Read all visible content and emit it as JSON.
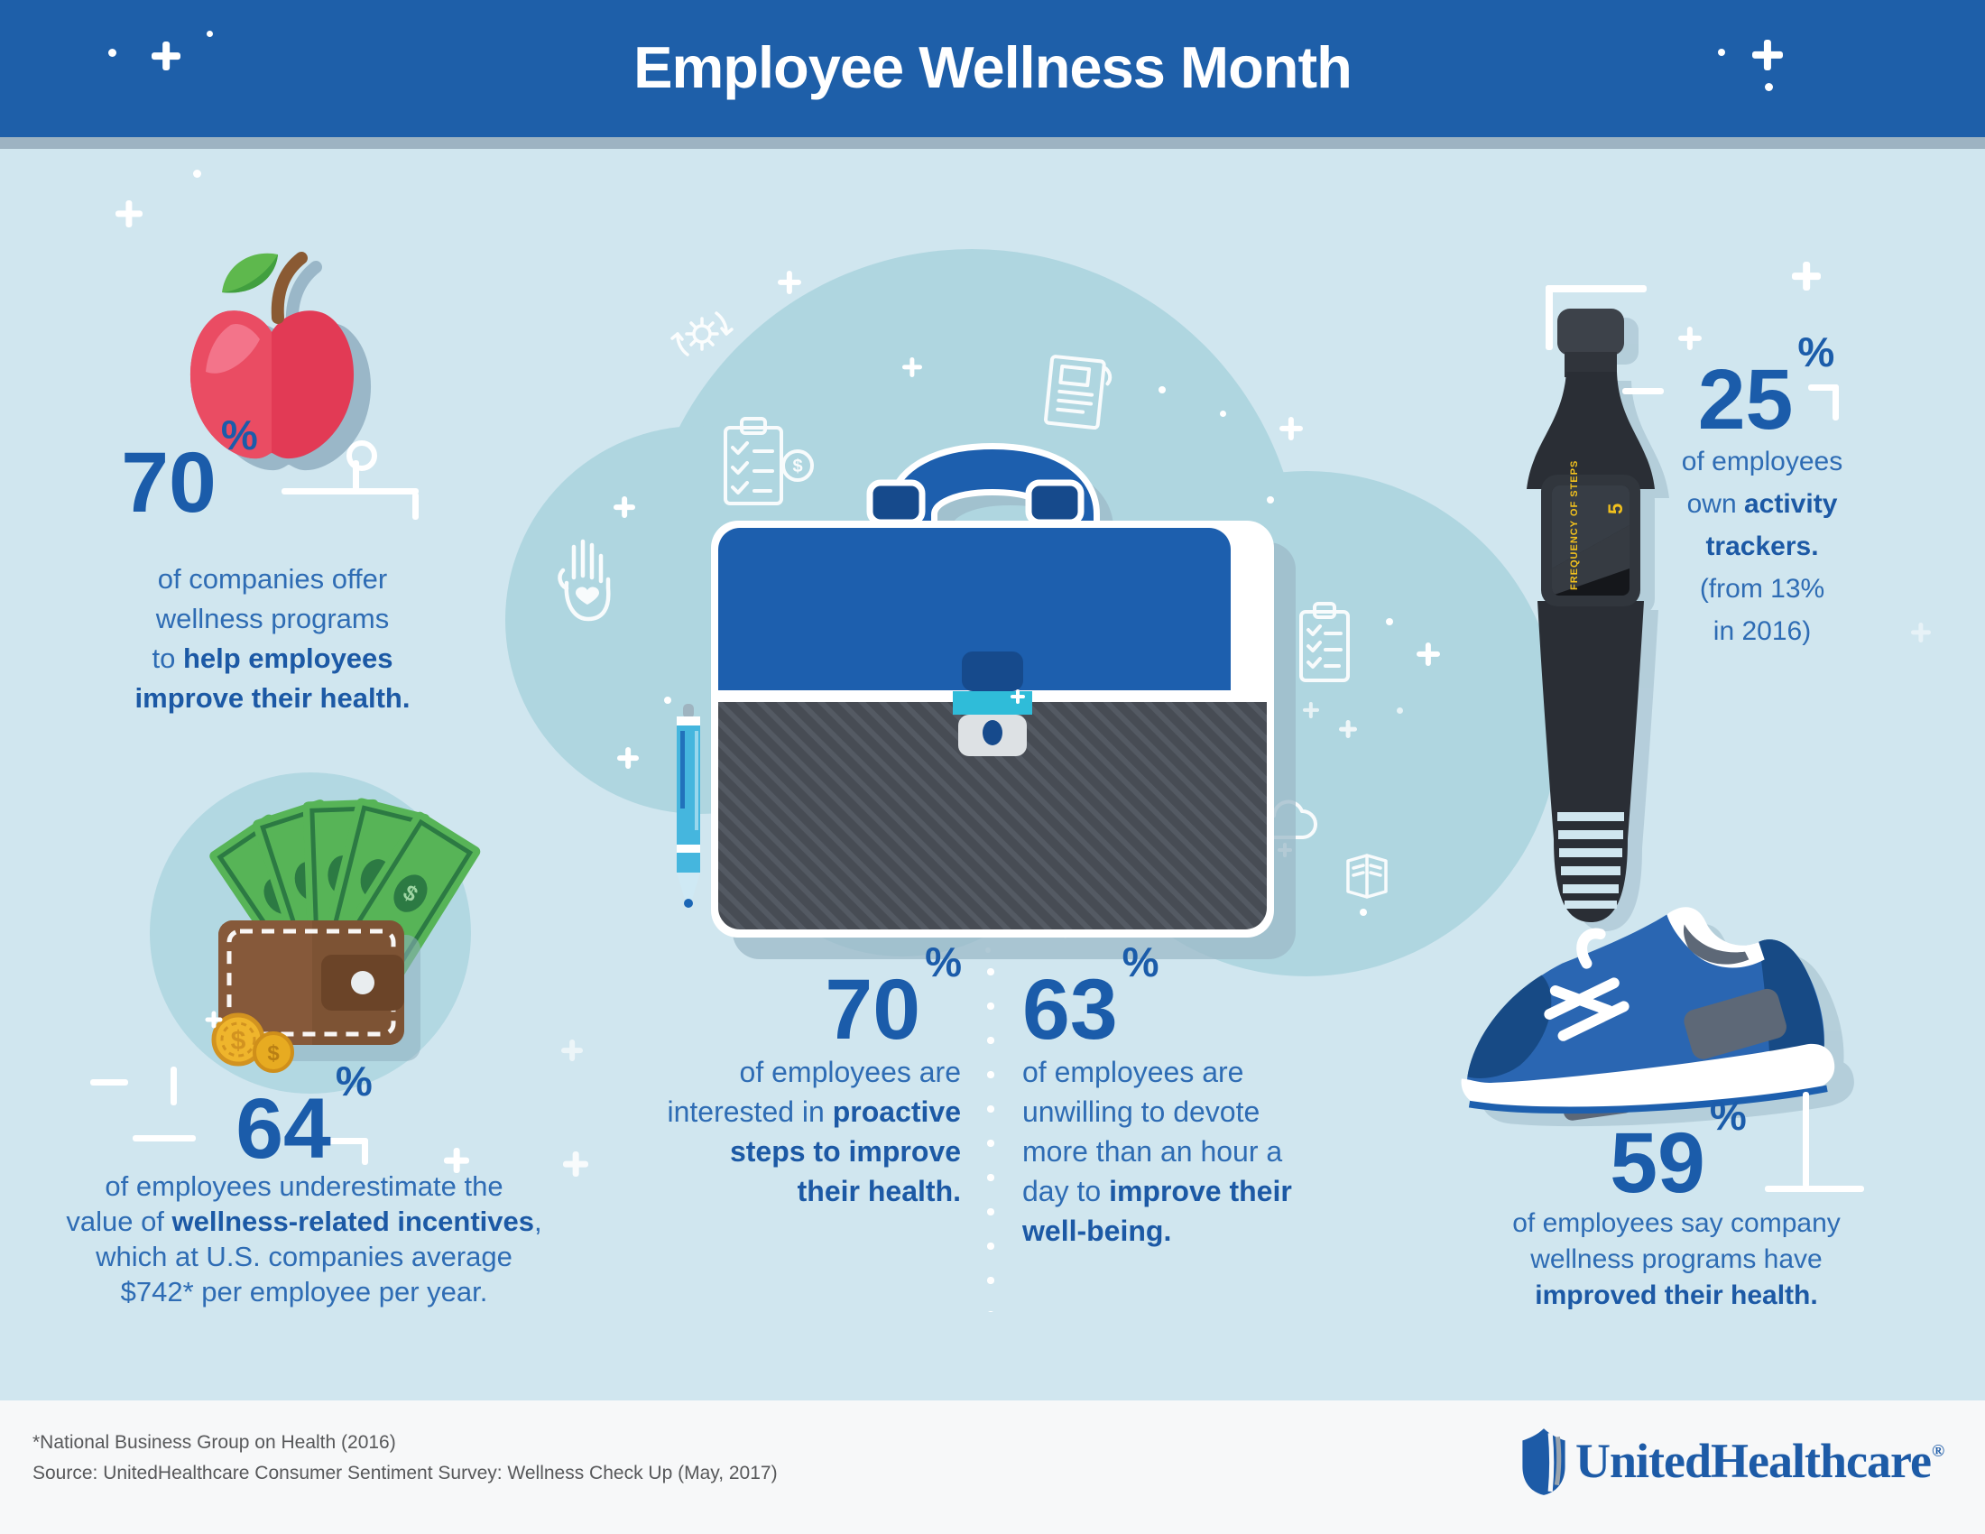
{
  "header": {
    "title": "Employee Wellness Month"
  },
  "stats": {
    "companies": {
      "value": "70",
      "unit": "%",
      "lines": [
        [
          {
            "t": "of companies offer"
          }
        ],
        [
          {
            "t": "wellness programs"
          }
        ],
        [
          {
            "t": "to "
          },
          {
            "t": "help employees",
            "b": true
          }
        ],
        [
          {
            "t": "improve their health.",
            "b": true
          }
        ]
      ]
    },
    "incentives": {
      "value": "64",
      "unit": "%",
      "lines": [
        [
          {
            "t": "of employees underestimate the"
          }
        ],
        [
          {
            "t": "value of "
          },
          {
            "t": "wellness-related incentives",
            "b": true
          },
          {
            "t": ","
          }
        ],
        [
          {
            "t": "which at U.S. companies average"
          }
        ],
        [
          {
            "t": "$742* per employee per year."
          }
        ]
      ]
    },
    "proactive": {
      "value": "70",
      "unit": "%",
      "lines": [
        [
          {
            "t": "of employees are"
          }
        ],
        [
          {
            "t": "interested in "
          },
          {
            "t": "proactive",
            "b": true
          }
        ],
        [
          {
            "t": "steps to improve",
            "b": true
          }
        ],
        [
          {
            "t": "their health.",
            "b": true
          }
        ]
      ]
    },
    "unwilling": {
      "value": "63",
      "unit": "%",
      "lines": [
        [
          {
            "t": "of employees are"
          }
        ],
        [
          {
            "t": "unwilling to devote"
          }
        ],
        [
          {
            "t": "more than an hour a"
          }
        ],
        [
          {
            "t": "day to "
          },
          {
            "t": "improve their",
            "b": true
          }
        ],
        [
          {
            "t": "well-being.",
            "b": true
          }
        ]
      ]
    },
    "trackers": {
      "value": "25",
      "unit": "%",
      "lines": [
        [
          {
            "t": "of employees"
          }
        ],
        [
          {
            "t": "own "
          },
          {
            "t": "activity",
            "b": true
          }
        ],
        [
          {
            "t": "trackers.",
            "b": true
          }
        ],
        [
          {
            "t": "(from 13%"
          }
        ],
        [
          {
            "t": "in 2016)"
          }
        ]
      ]
    },
    "improved": {
      "value": "59",
      "unit": "%",
      "lines": [
        [
          {
            "t": "of employees say company"
          }
        ],
        [
          {
            "t": "wellness programs have"
          }
        ],
        [
          {
            "t": "improved their health.",
            "b": true
          }
        ]
      ]
    }
  },
  "watch": {
    "screen_label": "FREQUENCY OF STEPS",
    "screen_value": "5"
  },
  "footer": {
    "note": "*National Business Group on Health (2016)",
    "source": "Source: UnitedHealthcare Consumer Sentiment Survey: Wellness Check Up (May, 2017)",
    "brand": "UnitedHealthcare",
    "reg": "®"
  },
  "colors": {
    "header_blue": "#1e5fa9",
    "background": "#d0e6ef",
    "cloud": "#afd6e0",
    "stat_number_blue": "#1b5caa",
    "text_blue": "#2e6cb4",
    "bold_blue": "#1c59a5",
    "briefcase_blue": "#1d5fae",
    "briefcase_gray": "#474c54",
    "clasp_teal": "#2fbcd9",
    "apple_red": "#e9495f",
    "leaf_green": "#5eb84d",
    "wallet_brown": "#7d5334",
    "bill_green": "#57b457",
    "coin_gold": "#efb52c",
    "watch_black": "#2a2e35",
    "watch_text_yellow": "#f2c11d",
    "sneaker_blue": "#2a66b2",
    "footer_text": "#57585a",
    "brand_blue": "#1d5ba7"
  }
}
